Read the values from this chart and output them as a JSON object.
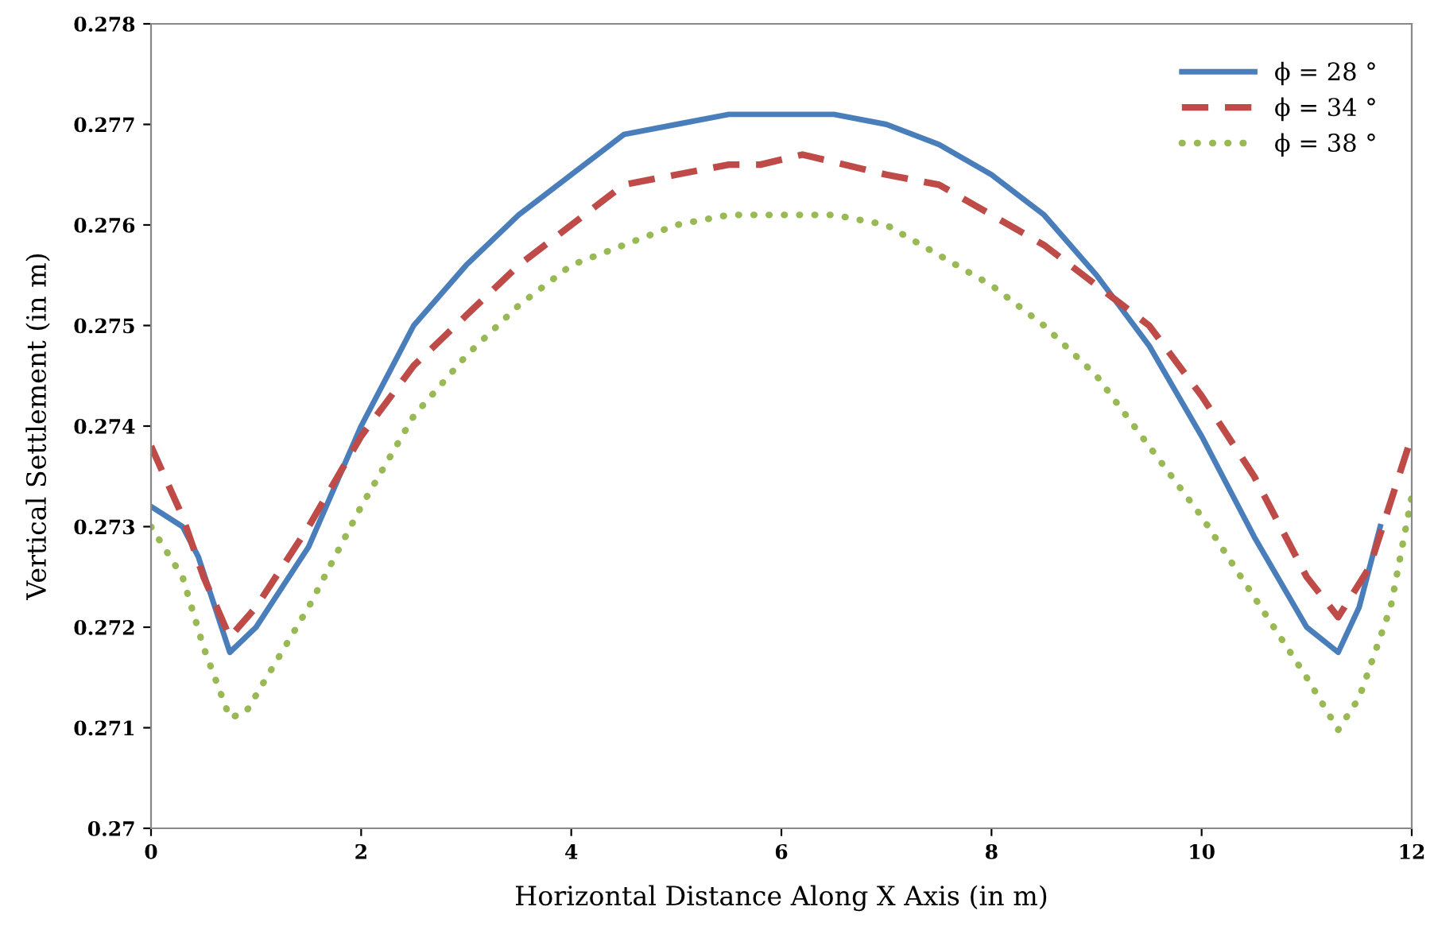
{
  "chart_data": {
    "type": "line",
    "xlabel": "Horizontal Distance Along X Axis (in m)",
    "ylabel": "Vertical Settlement (in m)",
    "xlim": [
      0,
      12
    ],
    "xticks": [
      0,
      2,
      4,
      6,
      8,
      10,
      12
    ],
    "ylim": [
      0.27,
      0.278
    ],
    "yticks": [
      0.27,
      0.271,
      0.272,
      0.273,
      0.274,
      0.275,
      0.276,
      0.277,
      0.278
    ],
    "grid": false,
    "legend": "top right",
    "marker": "none",
    "series": [
      {
        "name": "ϕ = 28 °",
        "color": "#4a7ebb",
        "line_style": "solid",
        "x": [
          0,
          0.3,
          0.45,
          0.75,
          1.0,
          1.5,
          2.0,
          2.5,
          3.0,
          3.5,
          4.0,
          4.5,
          5.0,
          5.5,
          6.0,
          6.5,
          7.0,
          7.5,
          8.0,
          8.5,
          9.0,
          9.5,
          10.0,
          10.5,
          11.0,
          11.3,
          11.5,
          11.7
        ],
        "values": [
          0.2732,
          0.273,
          0.2727,
          0.27175,
          0.272,
          0.2728,
          0.274,
          0.275,
          0.2756,
          0.2761,
          0.2765,
          0.2769,
          0.277,
          0.2771,
          0.2771,
          0.2771,
          0.277,
          0.2768,
          0.2765,
          0.2761,
          0.2755,
          0.2748,
          0.2739,
          0.2729,
          0.272,
          0.27175,
          0.2722,
          0.273
        ]
      },
      {
        "name": "ϕ = 34 °",
        "color": "#be4b48",
        "line_style": "dashed",
        "x": [
          0,
          0.3,
          0.5,
          0.75,
          1.0,
          1.5,
          2.0,
          2.5,
          3.0,
          3.5,
          4.0,
          4.5,
          5.0,
          5.5,
          5.8,
          6.2,
          7.0,
          7.5,
          8.0,
          8.5,
          9.0,
          9.5,
          10.0,
          10.5,
          11.0,
          11.3,
          11.6,
          12.0
        ],
        "values": [
          0.2738,
          0.2731,
          0.2725,
          0.2719,
          0.2722,
          0.273,
          0.2739,
          0.2746,
          0.2751,
          0.2756,
          0.276,
          0.2764,
          0.2765,
          0.2766,
          0.2766,
          0.2767,
          0.2765,
          0.2764,
          0.2761,
          0.2758,
          0.2754,
          0.275,
          0.2743,
          0.2735,
          0.2725,
          0.2721,
          0.2726,
          0.2739
        ]
      },
      {
        "name": "ϕ = 38 °",
        "color": "#98b954",
        "line_style": "dotted",
        "x": [
          0,
          0.3,
          0.5,
          0.75,
          0.9,
          1.5,
          2.0,
          2.5,
          3.0,
          3.5,
          4.0,
          4.5,
          5.0,
          5.5,
          6.0,
          6.5,
          7.0,
          7.5,
          8.0,
          8.5,
          9.0,
          9.5,
          10.0,
          10.5,
          11.0,
          11.3,
          11.5,
          11.8,
          12.0
        ],
        "values": [
          0.273,
          0.2725,
          0.2718,
          0.2711,
          0.27115,
          0.2722,
          0.2732,
          0.2741,
          0.2747,
          0.2752,
          0.2756,
          0.2758,
          0.276,
          0.2761,
          0.2761,
          0.2761,
          0.276,
          0.2757,
          0.2754,
          0.275,
          0.2745,
          0.2738,
          0.2731,
          0.2723,
          0.2715,
          0.27098,
          0.2713,
          0.2722,
          0.2733
        ]
      }
    ]
  }
}
